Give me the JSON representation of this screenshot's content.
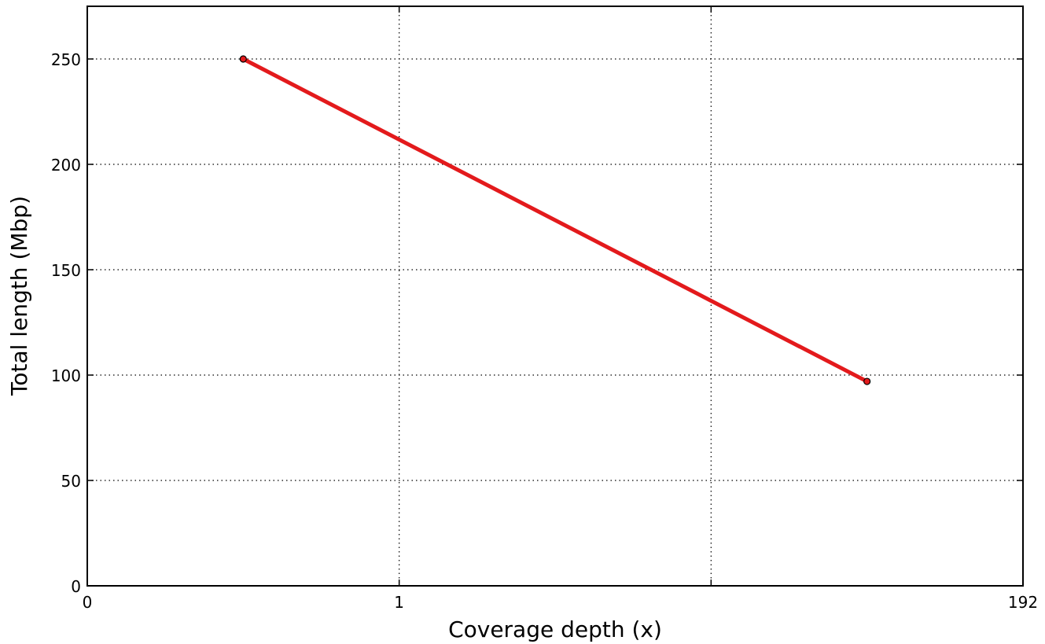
{
  "chart_data": {
    "type": "line",
    "title": "",
    "xlabel": "Coverage depth (x)",
    "ylabel": "Total length (Mbp)",
    "x_ticks": [
      {
        "label": "0",
        "pos": 0
      },
      {
        "label": "1",
        "pos": 1
      },
      {
        "label": "",
        "pos": 2
      },
      {
        "label": "192",
        "pos": 3
      }
    ],
    "xlim": [
      0,
      3
    ],
    "y_ticks": [
      0,
      50,
      100,
      150,
      200,
      250
    ],
    "ylim": [
      0,
      275
    ],
    "grid": true,
    "series": [
      {
        "name": "",
        "color": "#e31a1c",
        "points": [
          {
            "x": 0.5,
            "y": 250
          },
          {
            "x": 2.5,
            "y": 97
          }
        ]
      }
    ]
  }
}
